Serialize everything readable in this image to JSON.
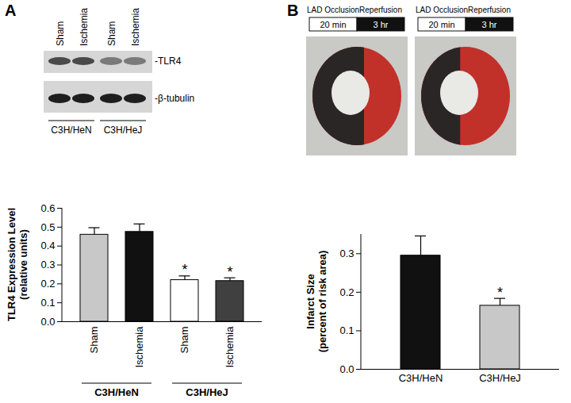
{
  "chart_data": [
    {
      "type": "bar",
      "panel": "A",
      "ylabel": "TLR4 Expression Level\n(relative units)",
      "categories": [
        "Sham",
        "Ischemia",
        "Sham",
        "Ischemia"
      ],
      "groups": [
        "C3H/HeN",
        "C3H/HeN",
        "C3H/HeJ",
        "C3H/HeJ"
      ],
      "values": [
        0.46,
        0.475,
        0.22,
        0.215
      ],
      "errors": [
        0.035,
        0.04,
        0.02,
        0.015
      ],
      "significance": [
        null,
        null,
        "*",
        "*"
      ],
      "colors": [
        "#c8c8c8",
        "#111111",
        "#ffffff",
        "#404040"
      ],
      "ylim": [
        0,
        0.6
      ],
      "yticks": [
        {
          "value": 0,
          "label": "0.0"
        },
        0.1,
        0.2,
        0.3,
        0.4,
        0.5,
        0.6
      ]
    },
    {
      "type": "bar",
      "panel": "B",
      "ylabel": "Infarct Size\n(percent of risk area)",
      "categories": [
        "C3H/HeN",
        "C3H/HeJ"
      ],
      "values": [
        0.295,
        0.165
      ],
      "errors": [
        0.05,
        0.018
      ],
      "significance": [
        null,
        "*"
      ],
      "colors": [
        "#111111",
        "#c8c8c8"
      ],
      "ylim": [
        0,
        0.35
      ],
      "yticks": [
        {
          "value": 0,
          "label": "0.0"
        },
        0.1,
        0.2,
        0.3
      ]
    }
  ],
  "blot": {
    "lanes": [
      "Sham",
      "Ischemia",
      "Sham",
      "Ischemia"
    ],
    "groups": [
      "C3H/HeN",
      "C3H/HeN",
      "C3H/HeJ",
      "C3H/HeJ"
    ],
    "bands": [
      "-TLR4",
      "-β-tubulin"
    ]
  },
  "protocols": [
    {
      "steps": [
        {
          "label": "LAD Occlusion",
          "duration": "20 min"
        },
        {
          "label": "Reperfusion",
          "duration": "3 hr"
        }
      ]
    },
    {
      "steps": [
        {
          "label": "LAD Occlusion",
          "duration": "20 min"
        },
        {
          "label": "Reperfusion",
          "duration": "3 hr"
        }
      ]
    }
  ]
}
